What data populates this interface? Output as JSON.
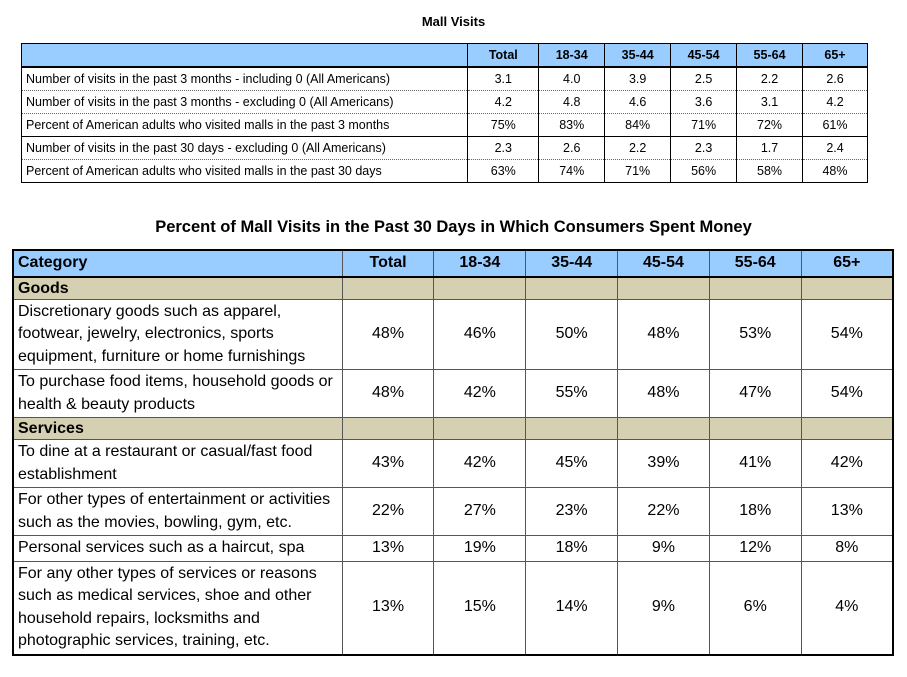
{
  "table1": {
    "title": "Mall Visits",
    "columns": [
      "",
      "Total",
      "18-34",
      "35-44",
      "45-54",
      "55-64",
      "65+"
    ],
    "rows": [
      [
        "Number of visits in the past 3 months - including 0 (All Americans)",
        "3.1",
        "4.0",
        "3.9",
        "2.5",
        "2.2",
        "2.6"
      ],
      [
        "Number of visits in the past 3 months - excluding 0 (All Americans)",
        "4.2",
        "4.8",
        "4.6",
        "3.6",
        "3.1",
        "4.2"
      ],
      [
        "Percent of American adults who visited malls in the past 3 months",
        "75%",
        "83%",
        "84%",
        "71%",
        "72%",
        "61%"
      ],
      [
        "Number of visits in the past 30 days - excluding 0 (All Americans)",
        "2.3",
        "2.6",
        "2.2",
        "2.3",
        "1.7",
        "2.4"
      ],
      [
        "Percent of American adults who visited malls in the past 30 days",
        "63%",
        "74%",
        "71%",
        "56%",
        "58%",
        "48%"
      ]
    ]
  },
  "table2": {
    "title": "Percent of Mall Visits in the Past 30 Days in Which Consumers Spent Money",
    "columns": [
      "Category",
      "Total",
      "18-34",
      "35-44",
      "45-54",
      "55-64",
      "65+"
    ],
    "sections": [
      {
        "name": "Goods",
        "rows": [
          [
            "Discretionary goods such as apparel, footwear, jewelry, electronics, sports equipment, furniture or home furnishings",
            "48%",
            "46%",
            "50%",
            "48%",
            "53%",
            "54%"
          ],
          [
            "To purchase food items, household goods or health & beauty products",
            "48%",
            "42%",
            "55%",
            "48%",
            "47%",
            "54%"
          ]
        ]
      },
      {
        "name": "Services",
        "rows": [
          [
            "To dine at a restaurant or casual/fast food establishment",
            "43%",
            "42%",
            "45%",
            "39%",
            "41%",
            "42%"
          ],
          [
            "For other types of entertainment or activities such as the movies, bowling, gym, etc.",
            "22%",
            "27%",
            "23%",
            "22%",
            "18%",
            "13%"
          ],
          [
            "Personal services such as a haircut, spa",
            "13%",
            "19%",
            "18%",
            "9%",
            "12%",
            "8%"
          ],
          [
            "For any other types of services or reasons such as medical services, shoe and other household repairs, locksmiths and photographic services, training, etc.",
            "13%",
            "15%",
            "14%",
            "9%",
            "6%",
            "4%"
          ]
        ]
      }
    ]
  }
}
